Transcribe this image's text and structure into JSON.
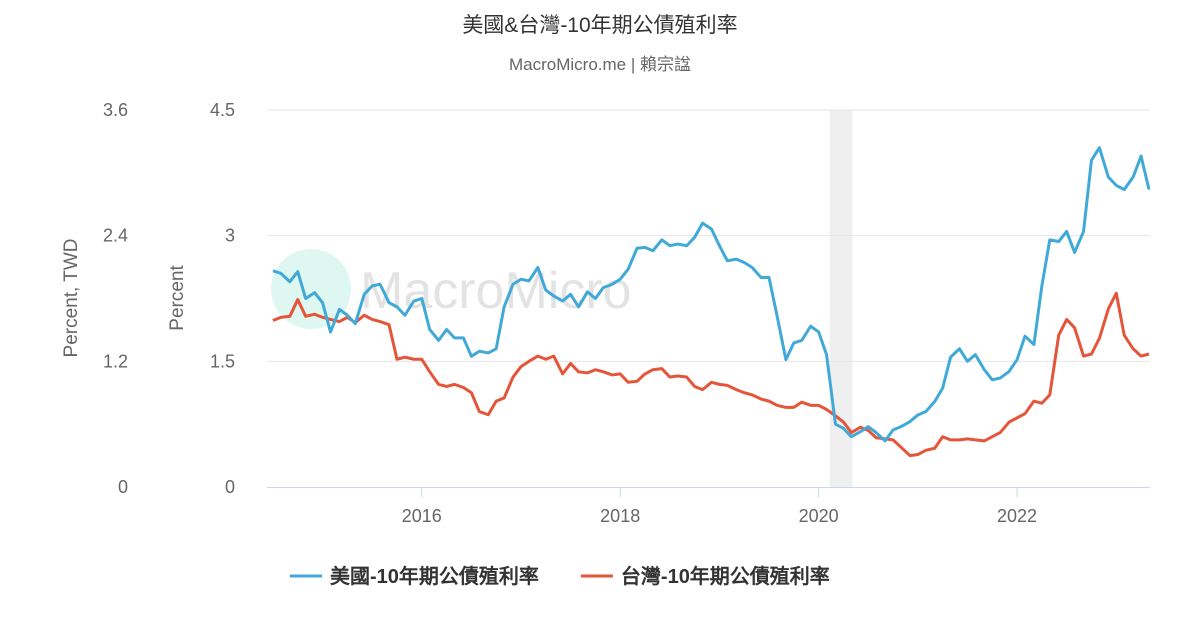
{
  "chart_data": {
    "type": "line",
    "title": "美國&台灣-10年期公債殖利率",
    "subtitle": "MacroMicro.me | 賴宗諡",
    "watermark": "MacroMicro",
    "y_label": "Percent",
    "y2_label": "Percent, TWD",
    "x": [
      2014.5,
      2014.58,
      2014.67,
      2014.75,
      2014.83,
      2014.92,
      2015,
      2015.08,
      2015.17,
      2015.25,
      2015.33,
      2015.42,
      2015.5,
      2015.58,
      2015.67,
      2015.75,
      2015.83,
      2015.92,
      2016,
      2016.08,
      2016.17,
      2016.25,
      2016.33,
      2016.42,
      2016.5,
      2016.58,
      2016.67,
      2016.75,
      2016.83,
      2016.92,
      2017,
      2017.08,
      2017.17,
      2017.25,
      2017.33,
      2017.42,
      2017.5,
      2017.58,
      2017.67,
      2017.75,
      2017.83,
      2017.92,
      2018,
      2018.08,
      2018.17,
      2018.25,
      2018.33,
      2018.42,
      2018.5,
      2018.58,
      2018.67,
      2018.75,
      2018.83,
      2018.92,
      2019,
      2019.08,
      2019.17,
      2019.25,
      2019.33,
      2019.42,
      2019.5,
      2019.58,
      2019.67,
      2019.75,
      2019.83,
      2019.92,
      2020,
      2020.08,
      2020.17,
      2020.25,
      2020.33,
      2020.42,
      2020.5,
      2020.58,
      2020.67,
      2020.75,
      2020.83,
      2020.92,
      2021,
      2021.08,
      2021.17,
      2021.25,
      2021.33,
      2021.42,
      2021.5,
      2021.58,
      2021.67,
      2021.75,
      2021.83,
      2021.92,
      2022,
      2022.08,
      2022.17,
      2022.25,
      2022.33,
      2022.42,
      2022.5,
      2022.58,
      2022.67,
      2022.75,
      2022.83,
      2022.92,
      2023,
      2023.08,
      2023.17,
      2023.25,
      2023.33
    ],
    "series": [
      {
        "name": "美國-10年期公債殖利率",
        "color": "#41a9d8",
        "axis": "y",
        "values": [
          2.58,
          2.55,
          2.45,
          2.57,
          2.25,
          2.32,
          2.2,
          1.85,
          2.12,
          2.05,
          1.95,
          2.3,
          2.4,
          2.42,
          2.2,
          2.15,
          2.05,
          2.22,
          2.25,
          1.88,
          1.75,
          1.88,
          1.78,
          1.78,
          1.56,
          1.62,
          1.6,
          1.65,
          2.15,
          2.42,
          2.48,
          2.46,
          2.62,
          2.35,
          2.28,
          2.22,
          2.3,
          2.15,
          2.33,
          2.25,
          2.38,
          2.42,
          2.48,
          2.6,
          2.85,
          2.86,
          2.82,
          2.95,
          2.88,
          2.9,
          2.88,
          2.98,
          3.15,
          3.08,
          2.88,
          2.7,
          2.72,
          2.68,
          2.62,
          2.5,
          2.5,
          2.05,
          1.52,
          1.72,
          1.75,
          1.92,
          1.85,
          1.58,
          0.75,
          0.7,
          0.6,
          0.66,
          0.72,
          0.65,
          0.55,
          0.68,
          0.72,
          0.78,
          0.86,
          0.9,
          1.02,
          1.18,
          1.55,
          1.65,
          1.5,
          1.58,
          1.4,
          1.28,
          1.3,
          1.38,
          1.52,
          1.8,
          1.7,
          2.4,
          2.95,
          2.93,
          3.05,
          2.8,
          3.05,
          3.9,
          4.05,
          3.7,
          3.6,
          3.55,
          3.7,
          3.95,
          3.55
        ]
      },
      {
        "name": "台灣-10年期公債殖利率",
        "color": "#e4553a",
        "axis": "y2",
        "values": [
          1.59,
          1.62,
          1.63,
          1.79,
          1.63,
          1.65,
          1.62,
          1.6,
          1.58,
          1.62,
          1.57,
          1.64,
          1.6,
          1.58,
          1.55,
          1.22,
          1.24,
          1.22,
          1.22,
          1.1,
          0.98,
          0.96,
          0.98,
          0.95,
          0.9,
          0.72,
          0.69,
          0.82,
          0.85,
          1.05,
          1.15,
          1.2,
          1.25,
          1.22,
          1.25,
          1.08,
          1.18,
          1.1,
          1.09,
          1.12,
          1.1,
          1.07,
          1.08,
          1.0,
          1.01,
          1.08,
          1.12,
          1.13,
          1.05,
          1.06,
          1.05,
          0.96,
          0.93,
          1.0,
          0.98,
          0.97,
          0.93,
          0.9,
          0.88,
          0.84,
          0.82,
          0.78,
          0.76,
          0.76,
          0.81,
          0.78,
          0.78,
          0.74,
          0.68,
          0.62,
          0.52,
          0.57,
          0.54,
          0.47,
          0.46,
          0.45,
          0.38,
          0.3,
          0.31,
          0.35,
          0.37,
          0.48,
          0.45,
          0.45,
          0.46,
          0.45,
          0.44,
          0.48,
          0.52,
          0.62,
          0.66,
          0.7,
          0.82,
          0.8,
          0.88,
          1.45,
          1.6,
          1.52,
          1.25,
          1.27,
          1.42,
          1.7,
          1.85,
          1.45,
          1.32,
          1.25,
          1.27
        ]
      }
    ],
    "xlim": [
      2014.44,
      2023.34
    ],
    "xticks": [
      2016,
      2018,
      2020,
      2022
    ],
    "ylim": [
      0,
      4.5
    ],
    "yticks": [
      0,
      1.5,
      3,
      4.5
    ],
    "y2lim": [
      0,
      3.6
    ],
    "y2ticks": [
      0,
      1.2,
      2.4,
      3.6
    ],
    "shaded_range": [
      2020.11,
      2020.34
    ],
    "grid": true,
    "legend": "bottom"
  }
}
